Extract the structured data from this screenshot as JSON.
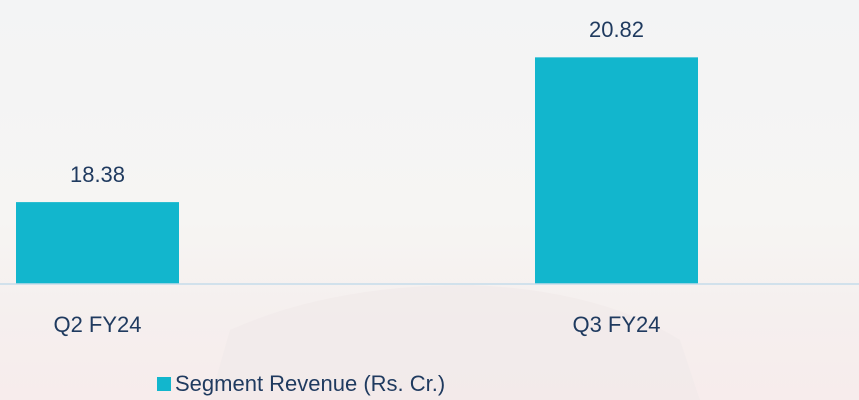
{
  "chart_data": {
    "type": "bar",
    "categories": [
      "Q2 FY24",
      "Q3 FY24"
    ],
    "series": [
      {
        "name": "Segment Revenue (Rs. Cr.)",
        "color": "#12b6cd",
        "values": [
          18.38,
          20.82
        ]
      }
    ],
    "ylim": [
      17,
      21.5
    ]
  }
}
